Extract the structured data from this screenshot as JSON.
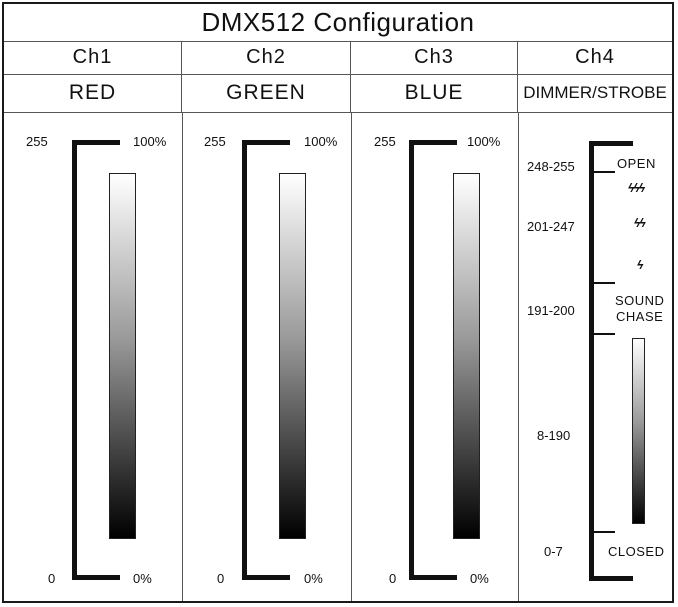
{
  "title": "DMX512 Configuration",
  "channels": [
    {
      "ch": "Ch1",
      "name": "RED",
      "max": "255",
      "min": "0",
      "pct_max": "100%",
      "pct_min": "0%"
    },
    {
      "ch": "Ch2",
      "name": "GREEN",
      "max": "255",
      "min": "0",
      "pct_max": "100%",
      "pct_min": "0%"
    },
    {
      "ch": "Ch3",
      "name": "BLUE",
      "max": "255",
      "min": "0",
      "pct_max": "100%",
      "pct_min": "0%"
    },
    {
      "ch": "Ch4",
      "name": "DIMMER/STROBE"
    }
  ],
  "ch4": {
    "ranges": [
      "248-255",
      "201-247",
      "191-200",
      "8-190",
      "0-7"
    ],
    "open": "OPEN",
    "sound": "SOUND",
    "chase": "CHASE",
    "closed": "CLOSED",
    "strobe_fast": "ϟϟϟ",
    "strobe_mid": "ϟϟ",
    "strobe_slow": "ϟ"
  }
}
